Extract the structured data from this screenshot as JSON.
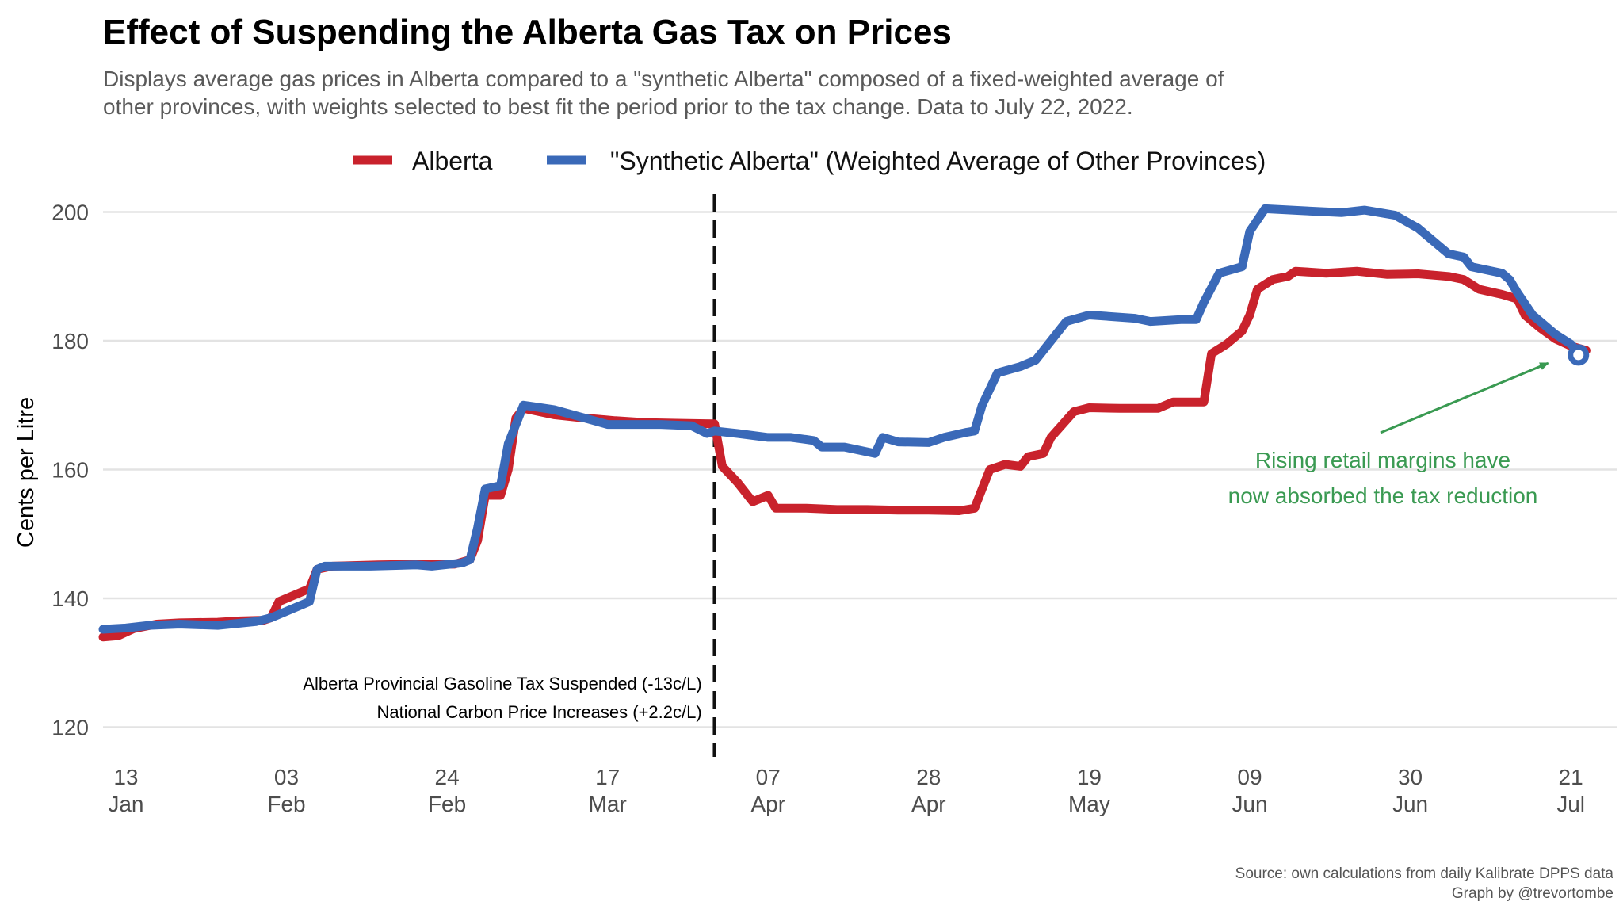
{
  "chart_data": {
    "type": "line",
    "title": "Effect of Suspending the Alberta Gas Tax on Prices",
    "subtitle": [
      "Displays average gas prices in Alberta compared to a \"synthetic Alberta\" composed of a fixed-weighted average of",
      "other provinces, with weights selected to best fit the period prior to the tax change. Data to July 22, 2022."
    ],
    "ylabel": "Cents per Litre",
    "xlabel": "",
    "ylim": [
      116,
      204
    ],
    "xlim": [
      "2022-01-10",
      "2022-07-27"
    ],
    "yticks": [
      120,
      140,
      160,
      180,
      200
    ],
    "xticks": [
      {
        "date": "2022-01-13",
        "day": "13",
        "month": "Jan"
      },
      {
        "date": "2022-02-03",
        "day": "03",
        "month": "Feb"
      },
      {
        "date": "2022-02-24",
        "day": "24",
        "month": "Feb"
      },
      {
        "date": "2022-03-17",
        "day": "17",
        "month": "Mar"
      },
      {
        "date": "2022-04-07",
        "day": "07",
        "month": "Apr"
      },
      {
        "date": "2022-04-28",
        "day": "28",
        "month": "Apr"
      },
      {
        "date": "2022-05-19",
        "day": "19",
        "month": "May"
      },
      {
        "date": "2022-06-09",
        "day": "09",
        "month": "Jun"
      },
      {
        "date": "2022-06-30",
        "day": "30",
        "month": "Jun"
      },
      {
        "date": "2022-07-21",
        "day": "21",
        "month": "Jul"
      }
    ],
    "grid": true,
    "legend_position": "top",
    "series": [
      {
        "name": "Alberta",
        "color": "#c9222c",
        "points": [
          [
            "2022-01-10",
            134.0
          ],
          [
            "2022-01-12",
            134.2
          ],
          [
            "2022-01-14",
            135.3
          ],
          [
            "2022-01-17",
            136.0
          ],
          [
            "2022-01-20",
            136.2
          ],
          [
            "2022-01-25",
            136.3
          ],
          [
            "2022-01-28",
            136.5
          ],
          [
            "2022-01-31",
            136.6
          ],
          [
            "2022-02-01",
            137.0
          ],
          [
            "2022-02-02",
            139.5
          ],
          [
            "2022-02-04",
            140.5
          ],
          [
            "2022-02-06",
            141.5
          ],
          [
            "2022-02-07",
            144.5
          ],
          [
            "2022-02-09",
            145.0
          ],
          [
            "2022-02-15",
            145.2
          ],
          [
            "2022-02-20",
            145.3
          ],
          [
            "2022-02-25",
            145.3
          ],
          [
            "2022-02-27",
            146.0
          ],
          [
            "2022-02-28",
            149.0
          ],
          [
            "2022-03-01",
            156.0
          ],
          [
            "2022-03-03",
            156.0
          ],
          [
            "2022-03-04",
            160.0
          ],
          [
            "2022-03-05",
            168.0
          ],
          [
            "2022-03-06",
            169.5
          ],
          [
            "2022-03-10",
            168.5
          ],
          [
            "2022-03-14",
            168.0
          ],
          [
            "2022-03-18",
            167.6
          ],
          [
            "2022-03-22",
            167.3
          ],
          [
            "2022-03-26",
            167.2
          ],
          [
            "2022-03-31",
            167.1
          ],
          [
            "2022-04-01",
            160.5
          ],
          [
            "2022-04-03",
            158.0
          ],
          [
            "2022-04-05",
            155.0
          ],
          [
            "2022-04-07",
            156.0
          ],
          [
            "2022-04-08",
            154.0
          ],
          [
            "2022-04-12",
            154.0
          ],
          [
            "2022-04-16",
            153.8
          ],
          [
            "2022-04-20",
            153.8
          ],
          [
            "2022-04-24",
            153.7
          ],
          [
            "2022-04-28",
            153.7
          ],
          [
            "2022-05-02",
            153.6
          ],
          [
            "2022-05-04",
            154.0
          ],
          [
            "2022-05-05",
            157.0
          ],
          [
            "2022-05-06",
            160.0
          ],
          [
            "2022-05-08",
            160.8
          ],
          [
            "2022-05-10",
            160.5
          ],
          [
            "2022-05-11",
            162.0
          ],
          [
            "2022-05-13",
            162.5
          ],
          [
            "2022-05-14",
            165.0
          ],
          [
            "2022-05-17",
            169.0
          ],
          [
            "2022-05-19",
            169.6
          ],
          [
            "2022-05-23",
            169.5
          ],
          [
            "2022-05-28",
            169.5
          ],
          [
            "2022-05-30",
            170.5
          ],
          [
            "2022-06-03",
            170.5
          ],
          [
            "2022-06-04",
            178.0
          ],
          [
            "2022-06-06",
            179.5
          ],
          [
            "2022-06-08",
            181.5
          ],
          [
            "2022-06-09",
            184.0
          ],
          [
            "2022-06-10",
            188.0
          ],
          [
            "2022-06-12",
            189.5
          ],
          [
            "2022-06-14",
            190.0
          ],
          [
            "2022-06-15",
            190.8
          ],
          [
            "2022-06-19",
            190.5
          ],
          [
            "2022-06-23",
            190.8
          ],
          [
            "2022-06-27",
            190.3
          ],
          [
            "2022-07-01",
            190.4
          ],
          [
            "2022-07-05",
            190.0
          ],
          [
            "2022-07-07",
            189.5
          ],
          [
            "2022-07-09",
            188.0
          ],
          [
            "2022-07-12",
            187.2
          ],
          [
            "2022-07-14",
            186.5
          ],
          [
            "2022-07-15",
            184.0
          ],
          [
            "2022-07-17",
            182.0
          ],
          [
            "2022-07-19",
            180.3
          ],
          [
            "2022-07-21",
            179.2
          ],
          [
            "2022-07-23",
            178.5
          ]
        ]
      },
      {
        "name": "\"Synthetic Alberta\" (Weighted Average of Other Provinces)",
        "color": "#3a69b8",
        "points": [
          [
            "2022-01-10",
            135.2
          ],
          [
            "2022-01-13",
            135.4
          ],
          [
            "2022-01-16",
            135.8
          ],
          [
            "2022-01-20",
            136.0
          ],
          [
            "2022-01-25",
            135.8
          ],
          [
            "2022-01-30",
            136.4
          ],
          [
            "2022-02-01",
            137.0
          ],
          [
            "2022-02-03",
            138.0
          ],
          [
            "2022-02-06",
            139.5
          ],
          [
            "2022-02-07",
            144.5
          ],
          [
            "2022-02-08",
            145.0
          ],
          [
            "2022-02-14",
            145.0
          ],
          [
            "2022-02-20",
            145.2
          ],
          [
            "2022-02-22",
            145.0
          ],
          [
            "2022-02-26",
            145.5
          ],
          [
            "2022-02-27",
            146.0
          ],
          [
            "2022-02-28",
            151.0
          ],
          [
            "2022-03-01",
            157.0
          ],
          [
            "2022-03-03",
            157.5
          ],
          [
            "2022-03-04",
            164.0
          ],
          [
            "2022-03-06",
            170.0
          ],
          [
            "2022-03-10",
            169.3
          ],
          [
            "2022-03-14",
            168.0
          ],
          [
            "2022-03-17",
            167.0
          ],
          [
            "2022-03-20",
            167.0
          ],
          [
            "2022-03-24",
            167.0
          ],
          [
            "2022-03-28",
            166.8
          ],
          [
            "2022-03-30",
            165.6
          ],
          [
            "2022-03-31",
            166.0
          ],
          [
            "2022-04-03",
            165.6
          ],
          [
            "2022-04-07",
            165.0
          ],
          [
            "2022-04-10",
            165.0
          ],
          [
            "2022-04-13",
            164.5
          ],
          [
            "2022-04-14",
            163.5
          ],
          [
            "2022-04-17",
            163.5
          ],
          [
            "2022-04-21",
            162.5
          ],
          [
            "2022-04-22",
            165.0
          ],
          [
            "2022-04-24",
            164.3
          ],
          [
            "2022-04-28",
            164.2
          ],
          [
            "2022-04-30",
            165.0
          ],
          [
            "2022-05-03",
            165.8
          ],
          [
            "2022-05-04",
            166.0
          ],
          [
            "2022-05-05",
            170.0
          ],
          [
            "2022-05-07",
            175.0
          ],
          [
            "2022-05-10",
            176.0
          ],
          [
            "2022-05-12",
            177.0
          ],
          [
            "2022-05-14",
            180.0
          ],
          [
            "2022-05-16",
            183.0
          ],
          [
            "2022-05-19",
            184.0
          ],
          [
            "2022-05-25",
            183.5
          ],
          [
            "2022-05-27",
            183.0
          ],
          [
            "2022-05-31",
            183.3
          ],
          [
            "2022-06-02",
            183.3
          ],
          [
            "2022-06-03",
            186.0
          ],
          [
            "2022-06-05",
            190.5
          ],
          [
            "2022-06-08",
            191.5
          ],
          [
            "2022-06-09",
            197.0
          ],
          [
            "2022-06-11",
            200.5
          ],
          [
            "2022-06-16",
            200.2
          ],
          [
            "2022-06-21",
            199.9
          ],
          [
            "2022-06-24",
            200.3
          ],
          [
            "2022-06-28",
            199.5
          ],
          [
            "2022-07-01",
            197.5
          ],
          [
            "2022-07-04",
            194.5
          ],
          [
            "2022-07-05",
            193.5
          ],
          [
            "2022-07-07",
            193.0
          ],
          [
            "2022-07-08",
            191.5
          ],
          [
            "2022-07-12",
            190.5
          ],
          [
            "2022-07-13",
            189.5
          ],
          [
            "2022-07-14",
            187.5
          ],
          [
            "2022-07-16",
            184.0
          ],
          [
            "2022-07-19",
            181.0
          ],
          [
            "2022-07-21",
            179.5
          ],
          [
            "2022-07-22",
            178.2
          ]
        ]
      }
    ],
    "endpoint_marker": {
      "date": "2022-07-22",
      "value": 177.8
    },
    "event_line": {
      "date": "2022-03-31",
      "labels": [
        "Alberta Provincial Gasoline Tax Suspended (-13c/L)",
        "National Carbon Price Increases (+2.2c/L)"
      ]
    },
    "annotation": {
      "lines": [
        "Rising retail margins have",
        "now absorbed the tax reduction"
      ],
      "arrow_to": {
        "date": "2022-07-18",
        "value": 177.5
      },
      "color": "#3a9a52"
    },
    "caption": [
      "Source: own calculations from daily Kalibrate DPPS data",
      "Graph by @trevortombe"
    ]
  }
}
